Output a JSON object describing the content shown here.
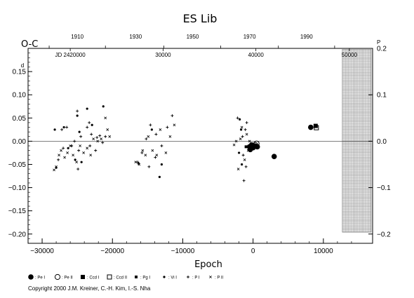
{
  "chart_data": {
    "type": "scatter",
    "title": "ES  Lib",
    "ylabel": "O-C",
    "xlabel": "Epoch",
    "xlim": [
      -32000,
      17000
    ],
    "ylim": [
      -0.22,
      0.2
    ],
    "x_ticks": [
      -30000,
      -20000,
      -10000,
      0,
      10000
    ],
    "x_tick_labels": [
      "−30000",
      "−20000",
      "−10000",
      "0",
      "10000"
    ],
    "y_ticks": [
      -0.2,
      -0.15,
      -0.1,
      -0.05,
      0.0,
      0.05,
      0.1,
      0.15
    ],
    "y_tick_labels": [
      "−0.20",
      "−0.15",
      "−0.10",
      "−0.05",
      "0.00",
      "0.05",
      "0.10",
      "0.15"
    ],
    "y_unit_mark": "d",
    "y_right_ticks": [
      -0.2,
      -0.1,
      0.0,
      0.1,
      0.2
    ],
    "y_right_tick_labels": [
      "−0.2",
      "−0.1",
      "0.0",
      "0.1",
      "0.2"
    ],
    "y_right_unit_mark": "P",
    "year_ticks_epoch": [
      -29000,
      -21000,
      -12700,
      -4600,
      3600,
      11600
    ],
    "year_tick_labels": [
      "1910",
      "1930",
      "1950",
      "1970",
      "1990"
    ],
    "year_label_epochs": [
      -25000,
      -16700,
      -8600,
      -500,
      7600
    ],
    "jd_ticks_epoch": [
      -26000,
      -12800,
      400,
      13700
    ],
    "jd_labels": [
      "JD 2420000",
      "30000",
      "40000",
      "50000"
    ],
    "hatch_region": {
      "x_from": 12700,
      "x_to": 16800,
      "y_from": -0.196,
      "y_to": 0.198
    },
    "series": [
      {
        "name": "Pe I",
        "marker": "filled-circle",
        "points": [
          [
            -500,
            -0.012
          ],
          [
            -400,
            -0.018
          ],
          [
            -200,
            -0.008
          ],
          [
            0,
            -0.014
          ],
          [
            200,
            -0.01
          ],
          [
            400,
            -0.011
          ],
          [
            600,
            -0.012
          ],
          [
            3000,
            -0.033
          ],
          [
            8200,
            0.03
          ]
        ]
      },
      {
        "name": "Pe II",
        "marker": "open-circle",
        "points": [
          [
            500,
            -0.005
          ],
          [
            300,
            -0.008
          ]
        ]
      },
      {
        "name": "Ccd I",
        "marker": "filled-square",
        "points": [
          [
            8900,
            0.033
          ]
        ]
      },
      {
        "name": "Ccd II",
        "marker": "open-square",
        "points": [
          [
            9000,
            0.029
          ]
        ]
      },
      {
        "name": "Pg I",
        "marker": "filled-square-small",
        "points": [
          [
            -1000,
            -0.012
          ]
        ]
      },
      {
        "name": "Vi I",
        "marker": "dot",
        "points": [
          [
            -28200,
            0.025
          ],
          [
            -26900,
            0.03
          ],
          [
            -25000,
            0.055
          ],
          [
            -24700,
            0.02
          ],
          [
            -23600,
            0.07
          ],
          [
            -21300,
            0.075
          ],
          [
            -22900,
            0.035
          ],
          [
            -26300,
            -0.015
          ],
          [
            -25300,
            -0.04
          ],
          [
            -28000,
            -0.057
          ],
          [
            -24400,
            -0.045
          ],
          [
            -16300,
            -0.048
          ],
          [
            -14400,
            0.025
          ],
          [
            -13300,
            -0.077
          ],
          [
            -13000,
            -0.05
          ],
          [
            -1900,
            0.047
          ],
          [
            -1700,
            0.025
          ],
          [
            -2000,
            -0.025
          ],
          [
            -1600,
            -0.05
          ]
        ]
      },
      {
        "name": "P I",
        "marker": "plus",
        "points": [
          [
            -27200,
            0.025
          ],
          [
            -26500,
            0.03
          ],
          [
            -25000,
            0.065
          ],
          [
            -24500,
            0.01
          ],
          [
            -23600,
            0.03
          ],
          [
            -23300,
            0.04
          ],
          [
            -23000,
            0.015
          ],
          [
            -22200,
            0.008
          ],
          [
            -21800,
            0.012
          ],
          [
            -21400,
            -0.003
          ],
          [
            -21000,
            0.01
          ],
          [
            -25400,
            0.0
          ],
          [
            -24800,
            -0.02
          ],
          [
            -23200,
            -0.01
          ],
          [
            -22400,
            -0.02
          ],
          [
            -27700,
            -0.04
          ],
          [
            -27000,
            -0.015
          ],
          [
            -25800,
            -0.01
          ],
          [
            -24900,
            -0.06
          ],
          [
            -15200,
            0.005
          ],
          [
            -14600,
            0.035
          ],
          [
            -13800,
            0.015
          ],
          [
            -13000,
            -0.01
          ],
          [
            -12200,
            0.03
          ],
          [
            -11500,
            0.055
          ],
          [
            -15800,
            -0.025
          ],
          [
            -14800,
            -0.055
          ],
          [
            -13900,
            -0.035
          ],
          [
            -16400,
            -0.045
          ],
          [
            -2200,
            0.05
          ],
          [
            -1500,
            0.01
          ],
          [
            -1100,
            0.025
          ],
          [
            -900,
            0.04
          ],
          [
            -1400,
            -0.03
          ],
          [
            -1000,
            -0.055
          ],
          [
            -1300,
            -0.085
          ]
        ]
      },
      {
        "name": "P II",
        "marker": "cross",
        "points": [
          [
            -28300,
            -0.062
          ],
          [
            -28000,
            -0.055
          ],
          [
            -27600,
            -0.03
          ],
          [
            -27300,
            -0.02
          ],
          [
            -26800,
            -0.035
          ],
          [
            -26400,
            -0.025
          ],
          [
            -26000,
            -0.01
          ],
          [
            -25600,
            -0.03
          ],
          [
            -25100,
            -0.045
          ],
          [
            -24600,
            -0.01
          ],
          [
            -24100,
            -0.025
          ],
          [
            -23600,
            -0.015
          ],
          [
            -23100,
            -0.03
          ],
          [
            -22700,
            0.005
          ],
          [
            -22100,
            0.0
          ],
          [
            -21600,
            0.005
          ],
          [
            -21000,
            0.05
          ],
          [
            -20700,
            0.025
          ],
          [
            -20400,
            0.01
          ],
          [
            -16700,
            -0.045
          ],
          [
            -16200,
            -0.05
          ],
          [
            -15700,
            -0.02
          ],
          [
            -15300,
            -0.03
          ],
          [
            -14900,
            0.01
          ],
          [
            -14300,
            -0.02
          ],
          [
            -13700,
            -0.03
          ],
          [
            -13200,
            0.025
          ],
          [
            -12400,
            -0.025
          ],
          [
            -11800,
            0.01
          ],
          [
            -11200,
            0.035
          ],
          [
            -2700,
            -0.008
          ],
          [
            -2400,
            0.0
          ],
          [
            -2100,
            -0.06
          ],
          [
            -1800,
            0.005
          ],
          [
            -1600,
            0.03
          ],
          [
            -1200,
            -0.04
          ],
          [
            -900,
            0.015
          ],
          [
            -700,
            -0.02
          ],
          [
            -500,
            0.0
          ]
        ]
      }
    ],
    "legend": [
      "Pe I",
      "Pe II",
      "Ccd I",
      "Ccd II",
      "Pg I",
      "Vi I",
      "P I",
      "P II"
    ],
    "legend_placement": "bottom-left"
  },
  "footer": {
    "copyright": "Copyright 2000 J.M. Kreiner, C.-H. Kim, I.-S. Nha"
  }
}
